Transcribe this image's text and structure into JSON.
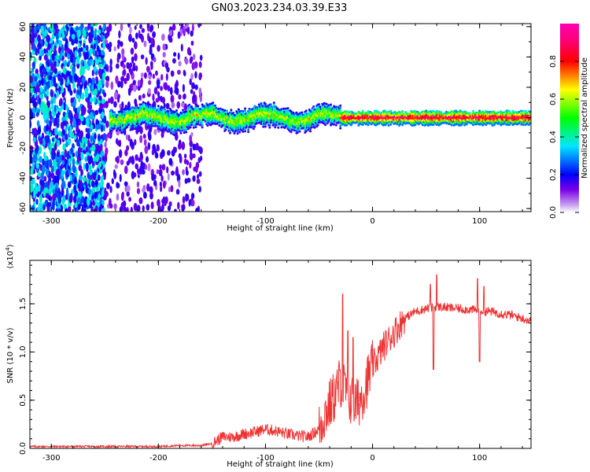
{
  "title": "GN03.2023.234.03.39.E33",
  "chart_data": [
    {
      "type": "heatmap",
      "xlabel": "Height of straight line (km)",
      "ylabel": "Frequency (Hz)",
      "xlim": [
        -320,
        148
      ],
      "ylim": [
        -62,
        62
      ],
      "x_ticks": [
        "-300",
        "-200",
        "-100",
        "0",
        "100"
      ],
      "y_ticks": [
        "-60",
        "-40",
        "-20",
        "0",
        "20",
        "40",
        "60"
      ],
      "colorbar": {
        "label": "Normalized spectral amplitude",
        "range": [
          0,
          1
        ],
        "ticks": [
          "0.0",
          "0.2",
          "0.4",
          "0.6",
          "0.8"
        ],
        "colors": [
          "#ffffff",
          "#7a00e6",
          "#0000ff",
          "#00e6ff",
          "#00ff00",
          "#ffff00",
          "#ff0000",
          "#ff0080",
          "#ff00b0"
        ]
      },
      "regions": [
        {
          "x_range": [
            -320,
            -250
          ],
          "freq_range": [
            -62,
            62
          ],
          "amplitude": [
            0.05,
            0.25
          ]
        },
        {
          "x_range": [
            -250,
            -160
          ],
          "freq_range": [
            -62,
            62
          ],
          "amplitude": [
            0.02,
            0.1
          ]
        },
        {
          "x_range": [
            -245,
            -30
          ],
          "freq_center_hz": 0,
          "freq_halfwidth_hz": 6,
          "amplitude": [
            0.2,
            0.6
          ]
        },
        {
          "x_range": [
            -30,
            148
          ],
          "freq_center_hz": 0,
          "freq_halfwidth_hz": 4,
          "amplitude": [
            0.4,
            0.95
          ]
        }
      ]
    },
    {
      "type": "line",
      "xlabel": "Height of straight line (km)",
      "ylabel": "SNR (10 * v/v)",
      "yscale_note": "(x10^4)",
      "xlim": [
        -320,
        148
      ],
      "ylim": [
        0,
        1.95
      ],
      "x_ticks": [
        "-300",
        "-200",
        "-100",
        "0",
        "100"
      ],
      "y_ticks": [
        "0.0",
        "0.5",
        "1.0",
        "1.5"
      ],
      "color": "#ee3333",
      "series": [
        {
          "points": [
            [
              -320,
              0.02
            ],
            [
              -300,
              0.02
            ],
            [
              -280,
              0.02
            ],
            [
              -260,
              0.02
            ],
            [
              -240,
              0.02
            ],
            [
              -220,
              0.02
            ],
            [
              -200,
              0.02
            ],
            [
              -180,
              0.03
            ],
            [
              -160,
              0.03
            ],
            [
              -150,
              0.05
            ],
            [
              -140,
              0.12
            ],
            [
              -130,
              0.12
            ],
            [
              -120,
              0.15
            ],
            [
              -110,
              0.17
            ],
            [
              -100,
              0.2
            ],
            [
              -90,
              0.18
            ],
            [
              -80,
              0.15
            ],
            [
              -70,
              0.13
            ],
            [
              -60,
              0.12
            ],
            [
              -50,
              0.2
            ],
            [
              -45,
              0.35
            ],
            [
              -40,
              0.45
            ],
            [
              -35,
              0.55
            ],
            [
              -30,
              0.7
            ],
            [
              -25,
              0.6
            ],
            [
              -20,
              0.5
            ],
            [
              -15,
              0.45
            ],
            [
              -10,
              0.55
            ],
            [
              -5,
              0.7
            ],
            [
              0,
              0.85
            ],
            [
              10,
              1.05
            ],
            [
              20,
              1.2
            ],
            [
              30,
              1.35
            ],
            [
              40,
              1.42
            ],
            [
              50,
              1.45
            ],
            [
              60,
              1.47
            ],
            [
              70,
              1.46
            ],
            [
              80,
              1.45
            ],
            [
              90,
              1.44
            ],
            [
              100,
              1.43
            ],
            [
              110,
              1.42
            ],
            [
              120,
              1.4
            ],
            [
              130,
              1.38
            ],
            [
              140,
              1.35
            ],
            [
              148,
              1.32
            ]
          ],
          "spikes": [
            [
              -28,
              1.6
            ],
            [
              -23,
              1.22
            ],
            [
              -18,
              1.15
            ],
            [
              54,
              1.7
            ],
            [
              57,
              0.82
            ],
            [
              60,
              1.8
            ],
            [
              98,
              1.76
            ],
            [
              100,
              0.9
            ],
            [
              104,
              1.68
            ]
          ]
        }
      ]
    }
  ]
}
